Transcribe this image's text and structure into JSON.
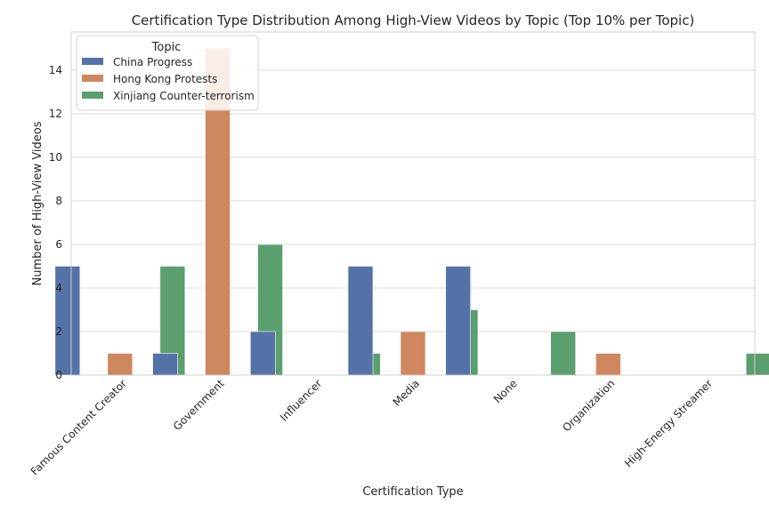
{
  "chart_data": {
    "type": "bar",
    "title": "Certification Type Distribution Among High-View Videos by Topic (Top 10% per Topic)",
    "xlabel": "Certification Type",
    "ylabel": "Number of High-View Videos",
    "categories": [
      "Famous Content Creator",
      "Government",
      "Influencer",
      "Media",
      "None",
      "Organization",
      "High-Energy Streamer"
    ],
    "series": [
      {
        "name": "China Progress",
        "color": "#5572a8",
        "values": [
          5,
          1,
          2,
          5,
          5,
          0,
          0
        ]
      },
      {
        "name": "Hong Kong Protests",
        "color": "#cf875f",
        "values": [
          1,
          15,
          0,
          2,
          0,
          1,
          0
        ]
      },
      {
        "name": "Xinjiang Counter-terrorism",
        "color": "#5b9f6f",
        "values": [
          5,
          6,
          1,
          3,
          2,
          0,
          1
        ]
      }
    ],
    "ylim": [
      0,
      15.75
    ],
    "yticks": [
      0,
      2,
      4,
      6,
      8,
      10,
      12,
      14
    ],
    "grid": true,
    "legend": {
      "title": "Topic",
      "placement": "top-left"
    }
  }
}
